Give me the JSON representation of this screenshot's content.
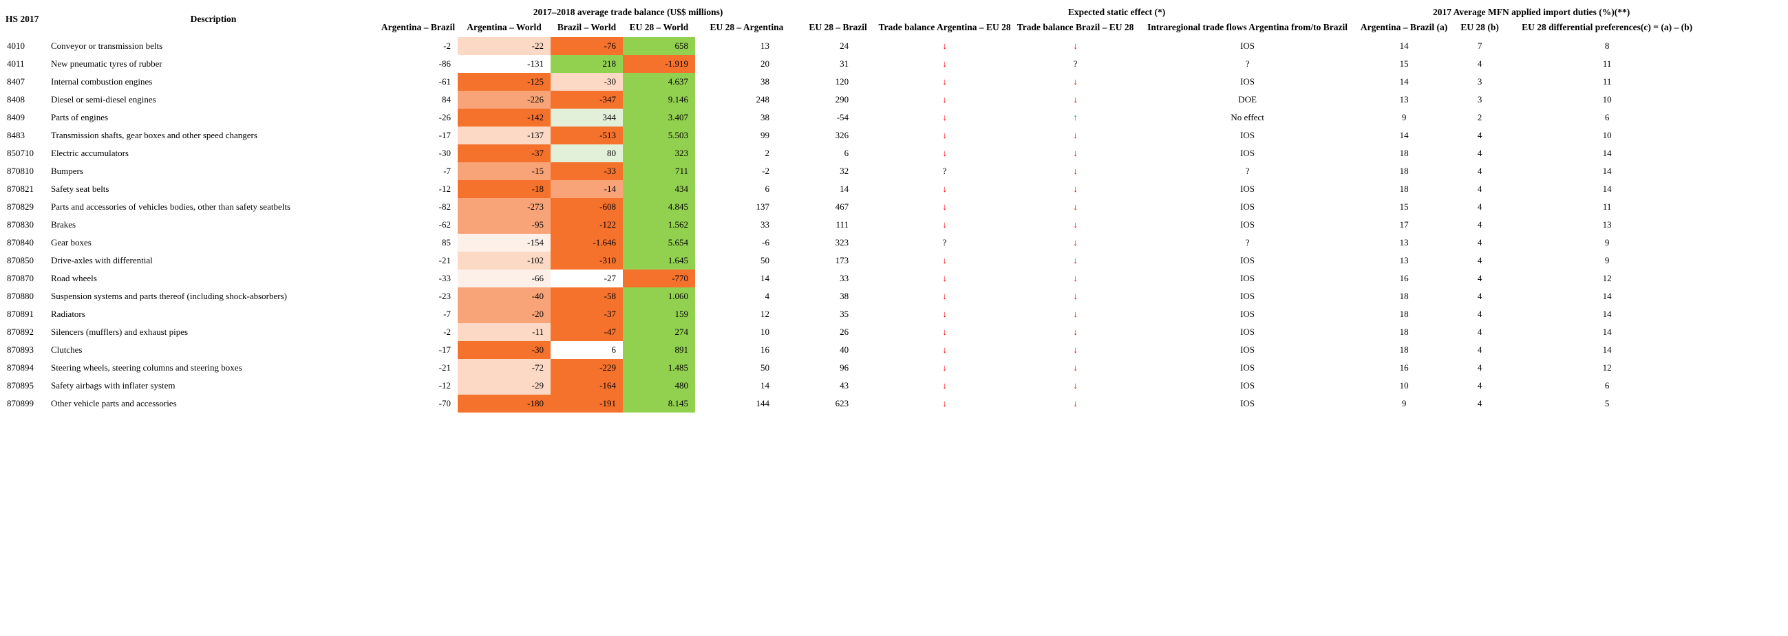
{
  "table": {
    "col_hs": "HS 2017",
    "col_description": "Description",
    "group_trade_balance": "2017–2018 average trade balance (U$$ millions)",
    "group_static_effect": "Expected static effect (*)",
    "group_duties": "2017 Average MFN applied import duties (%)(**)",
    "subheaders": [
      "Argentina – Brazil",
      "Argentina – World",
      "Brazil – World",
      "EU 28 – World",
      "EU 28 – Argentina",
      "EU 28 – Brazil",
      "Trade balance Argentina – EU 28",
      "Trade balance Brazil – EU 28",
      "Intraregional trade flows Argentina from/to Brazil",
      "Argentina – Brazil (a)",
      "EU 28 (b)",
      "EU 28 differential preferences(c) = (a) – (b)"
    ],
    "symbols": {
      "down": "↓",
      "up": "↑",
      "question": "?"
    },
    "rows": [
      {
        "hs": "4010",
        "description": "Conveyor or transmission belts",
        "arg_brazil": "-2",
        "arg_world": "-22",
        "brazil_world": "-76",
        "eu_world": "658",
        "eu_argentina": "13",
        "eu_brazil": "24",
        "effect_arg_eu": "down",
        "effect_bra_eu": "down",
        "intraregional": "IOS",
        "duty_arg_brazil_a": "14",
        "duty_eu28_b": "7",
        "duty_diff_c": "8",
        "cell_colors": [
          "peach",
          "orange",
          "green"
        ]
      },
      {
        "hs": "4011",
        "description": "New pneumatic tyres of rubber",
        "arg_brazil": "-86",
        "arg_world": "-131",
        "brazil_world": "218",
        "eu_world": "-1.919",
        "eu_argentina": "20",
        "eu_brazil": "31",
        "effect_arg_eu": "down",
        "effect_bra_eu": "question",
        "intraregional": "?",
        "duty_arg_brazil_a": "15",
        "duty_eu28_b": "4",
        "duty_diff_c": "11",
        "cell_colors": [
          "none",
          "green",
          "orange"
        ]
      },
      {
        "hs": "8407",
        "description": "Internal combustion engines",
        "arg_brazil": "-61",
        "arg_world": "-125",
        "brazil_world": "-30",
        "eu_world": "4.637",
        "eu_argentina": "38",
        "eu_brazil": "120",
        "effect_arg_eu": "down",
        "effect_bra_eu": "down",
        "intraregional": "IOS",
        "duty_arg_brazil_a": "14",
        "duty_eu28_b": "3",
        "duty_diff_c": "11",
        "cell_colors": [
          "orange",
          "peach",
          "green"
        ]
      },
      {
        "hs": "8408",
        "description": "Diesel or semi-diesel engines",
        "arg_brazil": "84",
        "arg_world": "-226",
        "brazil_world": "-347",
        "eu_world": "9.146",
        "eu_argentina": "248",
        "eu_brazil": "290",
        "effect_arg_eu": "down",
        "effect_bra_eu": "down",
        "intraregional": "DOE",
        "duty_arg_brazil_a": "13",
        "duty_eu28_b": "3",
        "duty_diff_c": "10",
        "cell_colors": [
          "salmon",
          "orange",
          "green"
        ]
      },
      {
        "hs": "8409",
        "description": "Parts of engines",
        "arg_brazil": "-26",
        "arg_world": "-142",
        "brazil_world": "344",
        "eu_world": "3.407",
        "eu_argentina": "38",
        "eu_brazil": "-54",
        "effect_arg_eu": "down",
        "effect_bra_eu": "up",
        "intraregional": "No effect",
        "duty_arg_brazil_a": "9",
        "duty_eu28_b": "2",
        "duty_diff_c": "6",
        "cell_colors": [
          "orange",
          "lightgreen",
          "green"
        ]
      },
      {
        "hs": "8483",
        "description": "Transmission shafts, gear boxes and other speed changers",
        "arg_brazil": "-17",
        "arg_world": "-137",
        "brazil_world": "-513",
        "eu_world": "5.503",
        "eu_argentina": "99",
        "eu_brazil": "326",
        "effect_arg_eu": "down",
        "effect_bra_eu": "down",
        "intraregional": "IOS",
        "duty_arg_brazil_a": "14",
        "duty_eu28_b": "4",
        "duty_diff_c": "10",
        "cell_colors": [
          "peach",
          "orange",
          "green"
        ]
      },
      {
        "hs": "850710",
        "description": "Electric accumulators",
        "arg_brazil": "-30",
        "arg_world": "-37",
        "brazil_world": "80",
        "eu_world": "323",
        "eu_argentina": "2",
        "eu_brazil": "6",
        "effect_arg_eu": "down",
        "effect_bra_eu": "down",
        "intraregional": "IOS",
        "duty_arg_brazil_a": "18",
        "duty_eu28_b": "4",
        "duty_diff_c": "14",
        "cell_colors": [
          "orange",
          "lightgreen",
          "green"
        ]
      },
      {
        "hs": "870810",
        "description": "Bumpers",
        "arg_brazil": "-7",
        "arg_world": "-15",
        "brazil_world": "-33",
        "eu_world": "711",
        "eu_argentina": "-2",
        "eu_brazil": "32",
        "effect_arg_eu": "question",
        "effect_bra_eu": "down",
        "intraregional": "?",
        "duty_arg_brazil_a": "18",
        "duty_eu28_b": "4",
        "duty_diff_c": "14",
        "cell_colors": [
          "salmon",
          "orange",
          "green"
        ]
      },
      {
        "hs": "870821",
        "description": "Safety seat belts",
        "arg_brazil": "-12",
        "arg_world": "-18",
        "brazil_world": "-14",
        "eu_world": "434",
        "eu_argentina": "6",
        "eu_brazil": "14",
        "effect_arg_eu": "down",
        "effect_bra_eu": "down",
        "intraregional": "IOS",
        "duty_arg_brazil_a": "18",
        "duty_eu28_b": "4",
        "duty_diff_c": "14",
        "cell_colors": [
          "orange",
          "salmon",
          "green"
        ]
      },
      {
        "hs": "870829",
        "description": "Parts and accessories of vehicles bodies, other than safety seatbelts",
        "arg_brazil": "-82",
        "arg_world": "-273",
        "brazil_world": "-608",
        "eu_world": "4.845",
        "eu_argentina": "137",
        "eu_brazil": "467",
        "effect_arg_eu": "down",
        "effect_bra_eu": "down",
        "intraregional": "IOS",
        "duty_arg_brazil_a": "15",
        "duty_eu28_b": "4",
        "duty_diff_c": "11",
        "cell_colors": [
          "salmon",
          "orange",
          "green"
        ]
      },
      {
        "hs": "870830",
        "description": "Brakes",
        "arg_brazil": "-62",
        "arg_world": "-95",
        "brazil_world": "-122",
        "eu_world": "1.562",
        "eu_argentina": "33",
        "eu_brazil": "111",
        "effect_arg_eu": "down",
        "effect_bra_eu": "down",
        "intraregional": "IOS",
        "duty_arg_brazil_a": "17",
        "duty_eu28_b": "4",
        "duty_diff_c": "13",
        "cell_colors": [
          "salmon",
          "orange",
          "green"
        ]
      },
      {
        "hs": "870840",
        "description": "Gear boxes",
        "arg_brazil": "85",
        "arg_world": "-154",
        "brazil_world": "-1.646",
        "eu_world": "5.654",
        "eu_argentina": "-6",
        "eu_brazil": "323",
        "effect_arg_eu": "question",
        "effect_bra_eu": "down",
        "intraregional": "?",
        "duty_arg_brazil_a": "13",
        "duty_eu28_b": "4",
        "duty_diff_c": "9",
        "cell_colors": [
          "blush",
          "orange",
          "green"
        ]
      },
      {
        "hs": "870850",
        "description": "Drive-axles with differential",
        "arg_brazil": "-21",
        "arg_world": "-102",
        "brazil_world": "-310",
        "eu_world": "1.645",
        "eu_argentina": "50",
        "eu_brazil": "173",
        "effect_arg_eu": "down",
        "effect_bra_eu": "down",
        "intraregional": "IOS",
        "duty_arg_brazil_a": "13",
        "duty_eu28_b": "4",
        "duty_diff_c": "9",
        "cell_colors": [
          "peach",
          "orange",
          "green"
        ]
      },
      {
        "hs": "870870",
        "description": "Road wheels",
        "arg_brazil": "-33",
        "arg_world": "-66",
        "brazil_world": "-27",
        "eu_world": "-770",
        "eu_argentina": "14",
        "eu_brazil": "33",
        "effect_arg_eu": "down",
        "effect_bra_eu": "down",
        "intraregional": "IOS",
        "duty_arg_brazil_a": "16",
        "duty_eu28_b": "4",
        "duty_diff_c": "12",
        "cell_colors": [
          "blush",
          "none",
          "orange"
        ]
      },
      {
        "hs": "870880",
        "description": "Suspension systems and parts thereof (including shock-absorbers)",
        "arg_brazil": "-23",
        "arg_world": "-40",
        "brazil_world": "-58",
        "eu_world": "1.060",
        "eu_argentina": "4",
        "eu_brazil": "38",
        "effect_arg_eu": "down",
        "effect_bra_eu": "down",
        "intraregional": "IOS",
        "duty_arg_brazil_a": "18",
        "duty_eu28_b": "4",
        "duty_diff_c": "14",
        "cell_colors": [
          "salmon",
          "orange",
          "green"
        ]
      },
      {
        "hs": "870891",
        "description": "Radiators",
        "arg_brazil": "-7",
        "arg_world": "-20",
        "brazil_world": "-37",
        "eu_world": "159",
        "eu_argentina": "12",
        "eu_brazil": "35",
        "effect_arg_eu": "down",
        "effect_bra_eu": "down",
        "intraregional": "IOS",
        "duty_arg_brazil_a": "18",
        "duty_eu28_b": "4",
        "duty_diff_c": "14",
        "cell_colors": [
          "salmon",
          "orange",
          "green"
        ]
      },
      {
        "hs": "870892",
        "description": "Silencers (mufflers) and exhaust pipes",
        "arg_brazil": "-2",
        "arg_world": "-11",
        "brazil_world": "-47",
        "eu_world": "274",
        "eu_argentina": "10",
        "eu_brazil": "26",
        "effect_arg_eu": "down",
        "effect_bra_eu": "down",
        "intraregional": "IOS",
        "duty_arg_brazil_a": "18",
        "duty_eu28_b": "4",
        "duty_diff_c": "14",
        "cell_colors": [
          "peach",
          "orange",
          "green"
        ]
      },
      {
        "hs": "870893",
        "description": "Clutches",
        "arg_brazil": "-17",
        "arg_world": "-30",
        "brazil_world": "6",
        "eu_world": "891",
        "eu_argentina": "16",
        "eu_brazil": "40",
        "effect_arg_eu": "down",
        "effect_bra_eu": "down",
        "intraregional": "IOS",
        "duty_arg_brazil_a": "18",
        "duty_eu28_b": "4",
        "duty_diff_c": "14",
        "cell_colors": [
          "orange",
          "none",
          "green"
        ]
      },
      {
        "hs": "870894",
        "description": "Steering wheels, steering columns and steering boxes",
        "arg_brazil": "-21",
        "arg_world": "-72",
        "brazil_world": "-229",
        "eu_world": "1.485",
        "eu_argentina": "50",
        "eu_brazil": "96",
        "effect_arg_eu": "down",
        "effect_bra_eu": "down",
        "intraregional": "IOS",
        "duty_arg_brazil_a": "16",
        "duty_eu28_b": "4",
        "duty_diff_c": "12",
        "cell_colors": [
          "peach",
          "orange",
          "green"
        ]
      },
      {
        "hs": "870895",
        "description": "Safety airbags with inflater system",
        "arg_brazil": "-12",
        "arg_world": "-29",
        "brazil_world": "-164",
        "eu_world": "480",
        "eu_argentina": "14",
        "eu_brazil": "43",
        "effect_arg_eu": "down",
        "effect_bra_eu": "down",
        "intraregional": "IOS",
        "duty_arg_brazil_a": "10",
        "duty_eu28_b": "4",
        "duty_diff_c": "6",
        "cell_colors": [
          "peach",
          "orange",
          "green"
        ]
      },
      {
        "hs": "870899",
        "description": "Other vehicle parts and accessories",
        "arg_brazil": "-70",
        "arg_world": "-180",
        "brazil_world": "-191",
        "eu_world": "8.145",
        "eu_argentina": "144",
        "eu_brazil": "623",
        "effect_arg_eu": "down",
        "effect_bra_eu": "down",
        "intraregional": "IOS",
        "duty_arg_brazil_a": "9",
        "duty_eu28_b": "4",
        "duty_diff_c": "5",
        "cell_colors": [
          "orange",
          "orange",
          "green"
        ]
      }
    ]
  },
  "colors": {
    "cell_orange": "#f5722d",
    "cell_salmon": "#f8a478",
    "cell_peach": "#fcd9c4",
    "cell_blush": "#fdf0e8",
    "cell_green": "#92d050",
    "cell_light_green": "#e2efd9",
    "arrow_down_red": "#ff0000",
    "arrow_up_green": "#00b050",
    "text": "#000000",
    "background": "#ffffff"
  }
}
